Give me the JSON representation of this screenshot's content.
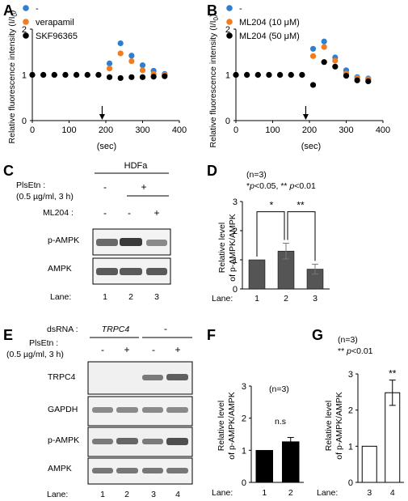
{
  "panels": {
    "A": {
      "letter": "A",
      "ylabel": "Relative fluorescence intensity (I/I",
      "ylabel_sub": "0",
      "xlabel": "(sec)",
      "xticks": [
        "0",
        "100",
        "200",
        "300",
        "400"
      ],
      "yticks": [
        "0",
        "1",
        "2"
      ]
    },
    "B": {
      "letter": "B",
      "ylabel": "Relative fluorescence intensity (I/I",
      "ylabel_sub": "0",
      "xlabel": "(sec)",
      "xticks": [
        "0",
        "100",
        "200",
        "300",
        "400"
      ],
      "yticks": [
        "0",
        "1",
        "2"
      ]
    },
    "C": {
      "letter": "C",
      "cell_line": "HDFa",
      "treatment_label": "PlsEtn :",
      "dose_label": "(0.5 µg/ml, 3 h)",
      "treatment_signs": [
        "-",
        "+",
        "-"
      ],
      "inhibitor_label": "ML204 :",
      "inhibitor_signs": [
        "-",
        "-",
        "+"
      ],
      "blots": [
        "p-AMPK",
        "AMPK"
      ],
      "lane_label": "Lane:",
      "lanes": [
        "1",
        "2",
        "3"
      ]
    },
    "D": {
      "letter": "D",
      "n_note": "(n=3)",
      "p_note_prefix": "*",
      "p_note_p1": "p",
      "p_note_mid": "<0.05, ** ",
      "p_note_p2": "p",
      "p_note_end": "<0.01",
      "ylabel1": "Relative level",
      "ylabel2": "of p-AMPK/AMPK",
      "yticks": [
        "0",
        "1",
        "2",
        "3"
      ],
      "lane_label": "Lane:",
      "sig1": "*",
      "sig2": "**"
    },
    "E": {
      "letter": "E",
      "dsrna_label": "dsRNA :",
      "dsrna_gene": "TRPC4",
      "dsrna_ctrl": "-",
      "treatment_label": "PlsEtn :",
      "dose_label": "(0.5 µg/ml, 3 h)",
      "treatment_signs": [
        "-",
        "+",
        "-",
        "+"
      ],
      "blots": [
        "TRPC4",
        "GAPDH",
        "p-AMPK",
        "AMPK"
      ],
      "lane_label": "Lane:",
      "lanes": [
        "1",
        "2",
        "3",
        "4"
      ]
    },
    "F": {
      "letter": "F",
      "n_note": "(n=3)",
      "ns": "n.s",
      "ylabel1": "Relative level",
      "ylabel2": "of p-AMPK/AMPK",
      "yticks": [
        "0",
        "1",
        "2",
        "3"
      ],
      "lane_label": "Lane:"
    },
    "G": {
      "letter": "G",
      "n_note": "(n=3)",
      "p_note_prefix": "** ",
      "p_note_p": "p",
      "p_note_end": "<0.01",
      "ylabel1": "Relative level",
      "ylabel2": "of p-AMPK/AMPK",
      "yticks": [
        "0",
        "1",
        "2",
        "3"
      ],
      "lane_label": "Lane:",
      "sig": "**"
    }
  },
  "chart_data": [
    {
      "panel": "A",
      "type": "scatter",
      "xlim": [
        0,
        400
      ],
      "ylim": [
        0,
        2
      ],
      "series": [
        {
          "name": "-",
          "color": "#2f7fd0",
          "x": [
            0,
            30,
            60,
            90,
            120,
            150,
            180,
            210,
            240,
            270,
            300,
            330,
            360
          ],
          "y": [
            1.0,
            1.0,
            1.0,
            1.0,
            1.0,
            1.0,
            1.0,
            1.25,
            1.69,
            1.42,
            1.21,
            1.09,
            1.02
          ]
        },
        {
          "name": "verapamil",
          "color": "#f07d22",
          "x": [
            0,
            30,
            60,
            90,
            120,
            150,
            180,
            210,
            240,
            270,
            300,
            330,
            360
          ],
          "y": [
            1.0,
            1.0,
            1.0,
            1.0,
            1.0,
            1.0,
            1.0,
            1.14,
            1.47,
            1.3,
            1.1,
            1.02,
            1.0
          ]
        },
        {
          "name": "SKF96365",
          "color": "#000000",
          "x": [
            0,
            30,
            60,
            90,
            120,
            150,
            180,
            210,
            240,
            270,
            300,
            330,
            360
          ],
          "y": [
            1.0,
            1.0,
            1.0,
            1.0,
            1.0,
            1.0,
            1.0,
            0.95,
            0.93,
            0.95,
            0.95,
            0.96,
            0.97
          ]
        }
      ],
      "annotation": {
        "type": "arrow",
        "x": 190
      }
    },
    {
      "panel": "B",
      "type": "scatter",
      "xlim": [
        0,
        400
      ],
      "ylim": [
        0,
        2
      ],
      "series": [
        {
          "name": "-",
          "color": "#2f7fd0",
          "x": [
            0,
            30,
            60,
            90,
            120,
            150,
            180,
            210,
            240,
            270,
            300,
            330,
            360
          ],
          "y": [
            1.0,
            1.0,
            1.0,
            1.0,
            1.0,
            1.0,
            1.0,
            1.57,
            1.73,
            1.38,
            1.1,
            0.95,
            0.92
          ]
        },
        {
          "name": "ML204 (10 μM)",
          "color": "#f07d22",
          "x": [
            0,
            30,
            60,
            90,
            120,
            150,
            180,
            210,
            240,
            270,
            300,
            330,
            360
          ],
          "y": [
            1.0,
            1.0,
            1.0,
            1.0,
            1.0,
            1.0,
            1.0,
            1.41,
            1.61,
            1.31,
            1.03,
            0.93,
            0.9
          ]
        },
        {
          "name": "ML204 (50 μM)",
          "color": "#000000",
          "x": [
            0,
            30,
            60,
            90,
            120,
            150,
            180,
            210,
            240,
            270,
            300,
            330,
            360
          ],
          "y": [
            1.0,
            1.0,
            1.0,
            1.0,
            1.0,
            1.0,
            1.0,
            0.78,
            1.28,
            1.18,
            0.98,
            0.88,
            0.86
          ]
        }
      ],
      "annotation": {
        "type": "arrow",
        "x": 190
      }
    },
    {
      "panel": "D",
      "type": "bar",
      "categories": [
        "1",
        "2",
        "3"
      ],
      "values": [
        1.0,
        1.3,
        0.68
      ],
      "errors": [
        0,
        0.27,
        0.17
      ],
      "color": "#555555",
      "ylim": [
        0,
        3
      ]
    },
    {
      "panel": "F",
      "type": "bar",
      "categories": [
        "1",
        "2"
      ],
      "values": [
        1.0,
        1.27
      ],
      "errors": [
        0,
        0.13
      ],
      "color": "#000000",
      "ylim": [
        0,
        3
      ]
    },
    {
      "panel": "G",
      "type": "bar",
      "categories": [
        "3",
        "4"
      ],
      "values": [
        1.0,
        2.48
      ],
      "errors": [
        0,
        0.35
      ],
      "color": "#ffffff",
      "ylim": [
        0,
        3
      ]
    }
  ]
}
